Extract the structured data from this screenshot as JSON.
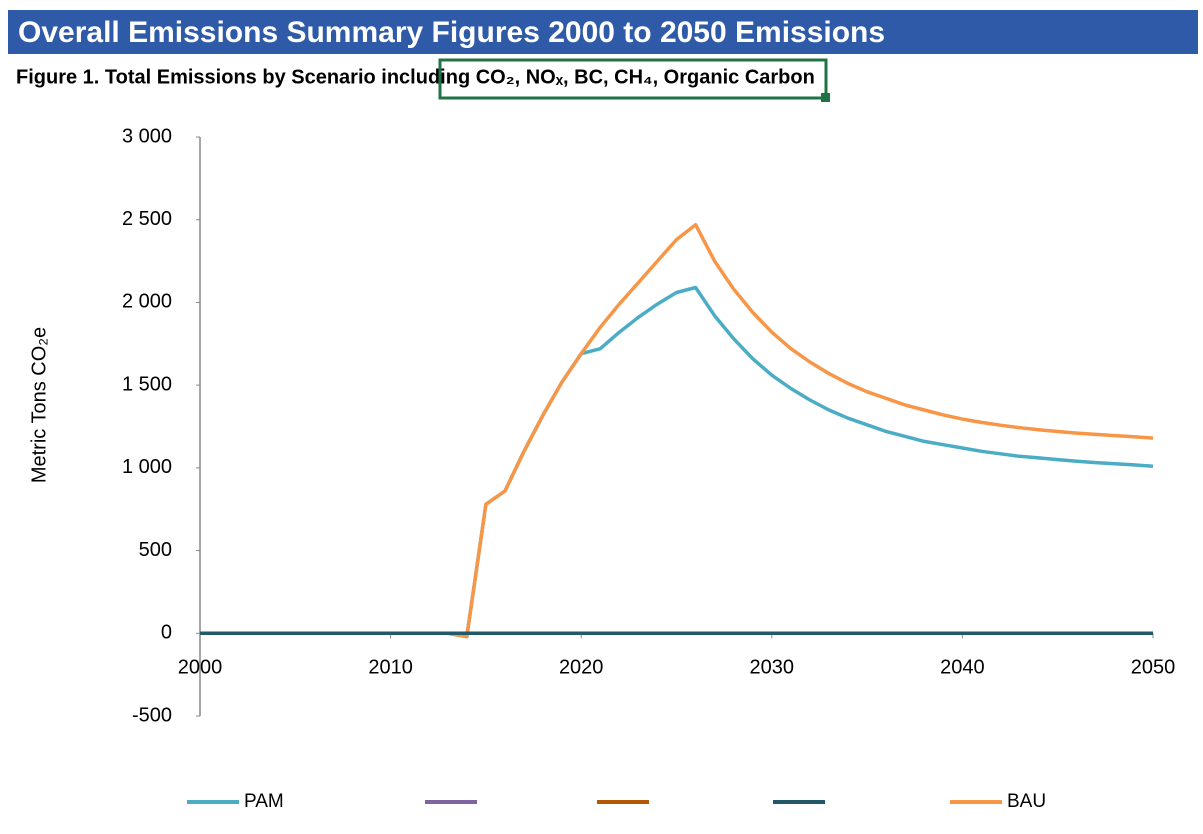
{
  "header": {
    "title": "Overall Emissions Summary Figures 2000 to 2050 Emissions"
  },
  "chart_data": {
    "type": "line",
    "title": "Figure 1. Total Emissions by Scenario including CO₂, NOₓ, BC, CH₄, Organic Carbon",
    "y_label": "Metric Tons CO₂e",
    "x": [
      2000,
      2001,
      2002,
      2003,
      2004,
      2005,
      2006,
      2007,
      2008,
      2009,
      2010,
      2011,
      2012,
      2013,
      2014,
      2015,
      2016,
      2017,
      2018,
      2019,
      2020,
      2021,
      2022,
      2023,
      2024,
      2025,
      2026,
      2027,
      2028,
      2029,
      2030,
      2031,
      2032,
      2033,
      2034,
      2035,
      2036,
      2037,
      2038,
      2039,
      2040,
      2041,
      2042,
      2043,
      2044,
      2045,
      2046,
      2047,
      2048,
      2049,
      2050
    ],
    "xlim": [
      2000,
      2050
    ],
    "xticks": [
      2000,
      2010,
      2020,
      2030,
      2040,
      2050
    ],
    "ylim": [
      -500,
      3000
    ],
    "yticks": [
      -500,
      0,
      500,
      {
        "value": 1000,
        "label": "1 000"
      },
      {
        "value": 1500,
        "label": "1 500"
      },
      {
        "value": 2000,
        "label": "2 000"
      },
      {
        "value": 2500,
        "label": "2 500"
      },
      {
        "value": 3000,
        "label": "3 000"
      }
    ],
    "grid": false,
    "legend": "bottom",
    "series": [
      {
        "name": "PAM",
        "color": "#4bacc6",
        "values": [
          0,
          0,
          0,
          0,
          0,
          0,
          0,
          0,
          0,
          0,
          0,
          0,
          0,
          0,
          -20,
          780,
          860,
          1100,
          1320,
          1520,
          1690,
          1720,
          1820,
          1910,
          1990,
          2060,
          2090,
          1920,
          1780,
          1660,
          1560,
          1480,
          1410,
          1350,
          1300,
          1260,
          1220,
          1190,
          1160,
          1140,
          1120,
          1100,
          1085,
          1070,
          1060,
          1050,
          1040,
          1032,
          1025,
          1018,
          1010
        ]
      },
      {
        "name": null,
        "color": "#8064a2",
        "values": [
          0,
          0,
          0,
          0,
          0,
          0,
          0,
          0,
          0,
          0,
          0,
          0,
          0,
          0,
          0,
          0,
          0,
          0,
          0,
          0,
          0,
          0,
          0,
          0,
          0,
          0,
          0,
          0,
          0,
          0,
          0,
          0,
          0,
          0,
          0,
          0,
          0,
          0,
          0,
          0,
          0,
          0,
          0,
          0,
          0,
          0,
          0,
          0,
          0,
          0,
          0
        ]
      },
      {
        "name": null,
        "color": "#b65708",
        "values": [
          0,
          0,
          0,
          0,
          0,
          0,
          0,
          0,
          0,
          0,
          0,
          0,
          0,
          0,
          0,
          0,
          0,
          0,
          0,
          0,
          0,
          0,
          0,
          0,
          0,
          0,
          0,
          0,
          0,
          0,
          0,
          0,
          0,
          0,
          0,
          0,
          0,
          0,
          0,
          0,
          0,
          0,
          0,
          0,
          0,
          0,
          0,
          0,
          0,
          0,
          0
        ]
      },
      {
        "name": null,
        "color": "#215968",
        "values": [
          0,
          0,
          0,
          0,
          0,
          0,
          0,
          0,
          0,
          0,
          0,
          0,
          0,
          0,
          0,
          0,
          0,
          0,
          0,
          0,
          0,
          0,
          0,
          0,
          0,
          0,
          0,
          0,
          0,
          0,
          0,
          0,
          0,
          0,
          0,
          0,
          0,
          0,
          0,
          0,
          0,
          0,
          0,
          0,
          0,
          0,
          0,
          0,
          0,
          0,
          0
        ]
      },
      {
        "name": "BAU",
        "color": "#f79646",
        "values": [
          0,
          0,
          0,
          0,
          0,
          0,
          0,
          0,
          0,
          0,
          0,
          0,
          0,
          0,
          -20,
          780,
          860,
          1100,
          1320,
          1520,
          1690,
          1850,
          1990,
          2120,
          2250,
          2380,
          2470,
          2250,
          2080,
          1940,
          1820,
          1720,
          1640,
          1570,
          1510,
          1460,
          1420,
          1380,
          1350,
          1320,
          1295,
          1275,
          1258,
          1243,
          1230,
          1220,
          1210,
          1202,
          1195,
          1188,
          1180
        ]
      }
    ]
  }
}
